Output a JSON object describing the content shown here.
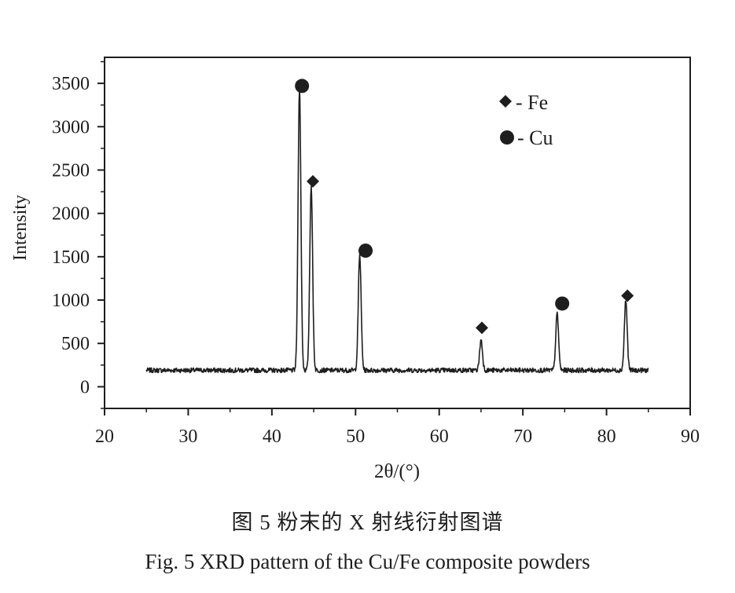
{
  "chart_data": {
    "type": "line",
    "xlabel": "2θ/(°)",
    "ylabel": "Intensity",
    "xlim": [
      20,
      90
    ],
    "ylim": [
      -250,
      3800
    ],
    "x_ticks": [
      20,
      30,
      40,
      50,
      60,
      70,
      80,
      90
    ],
    "y_ticks": [
      0,
      500,
      1000,
      1500,
      2000,
      2500,
      3000,
      3500
    ],
    "x_tick_labels": [
      "20",
      "30",
      "40",
      "50",
      "60",
      "70",
      "80",
      "90"
    ],
    "y_tick_labels": [
      "0",
      "500",
      "1000",
      "1500",
      "2000",
      "2500",
      "3000",
      "3500"
    ],
    "grid": false,
    "legend_position": "top-right",
    "legend": [
      {
        "marker": "diamond",
        "label": "- Fe"
      },
      {
        "marker": "circle",
        "label": "- Cu"
      }
    ],
    "x_range": [
      25,
      85
    ],
    "baseline": 190,
    "peaks": [
      {
        "x": 43.3,
        "y": 3450,
        "phase": "Cu"
      },
      {
        "x": 44.7,
        "y": 2320,
        "phase": "Fe"
      },
      {
        "x": 50.5,
        "y": 1520,
        "phase": "Cu"
      },
      {
        "x": 65.0,
        "y": 540,
        "phase": "Fe"
      },
      {
        "x": 74.1,
        "y": 840,
        "phase": "Cu"
      },
      {
        "x": 82.3,
        "y": 1000,
        "phase": "Fe"
      }
    ],
    "markers": [
      {
        "x": 43.6,
        "y": 3470,
        "shape": "circle"
      },
      {
        "x": 44.9,
        "y": 2370,
        "shape": "diamond"
      },
      {
        "x": 51.2,
        "y": 1570,
        "shape": "circle"
      },
      {
        "x": 65.1,
        "y": 680,
        "shape": "diamond"
      },
      {
        "x": 74.7,
        "y": 960,
        "shape": "circle"
      },
      {
        "x": 82.5,
        "y": 1050,
        "shape": "diamond"
      }
    ]
  },
  "caption": {
    "chinese": "图 5   粉末的 X 射线衍射图谱",
    "english": "Fig. 5   XRD pattern of the Cu/Fe composite powders"
  }
}
